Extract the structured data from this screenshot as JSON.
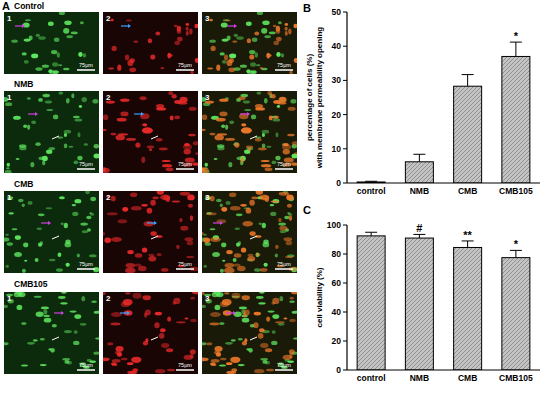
{
  "figure_a": {
    "title": "A",
    "rows": [
      {
        "label": "Control"
      },
      {
        "label": "NMB"
      },
      {
        "label": "CMB"
      },
      {
        "label": "CMB105"
      }
    ],
    "sub_labels": [
      "1",
      "2",
      "3"
    ],
    "scale_bar": "75μm"
  },
  "chart_data": [
    {
      "type": "bar",
      "title": "B",
      "categories": [
        "control",
        "NMB",
        "CMB",
        "CMB105"
      ],
      "values": [
        0.3,
        6.2,
        28.3,
        37.0
      ],
      "errors": [
        0.2,
        2.2,
        3.4,
        4.2
      ],
      "y_label": "percentage of cells (%)\nwith membrane permeability opening",
      "ylim": [
        0,
        50
      ],
      "yticks": [
        0,
        10,
        20,
        30,
        40,
        50
      ],
      "color": "#c4c4c4",
      "annotations": [
        {
          "text": "*",
          "category": "CMB105"
        }
      ]
    },
    {
      "type": "bar",
      "title": "C",
      "categories": [
        "control",
        "NMB",
        "CMB",
        "CMB105"
      ],
      "values": [
        92.5,
        91.0,
        84.5,
        77.5
      ],
      "errors": [
        2.5,
        2.5,
        4.5,
        5.0
      ],
      "y_label": "cell viability (%)",
      "ylim": [
        0,
        100
      ],
      "yticks": [
        0,
        20,
        40,
        60,
        80,
        100
      ],
      "color": "#c4c4c4",
      "annotations": [
        {
          "text": "#",
          "category": "NMB"
        },
        {
          "text": "**",
          "category": "CMB"
        },
        {
          "text": "*",
          "category": "CMB105"
        }
      ]
    }
  ]
}
